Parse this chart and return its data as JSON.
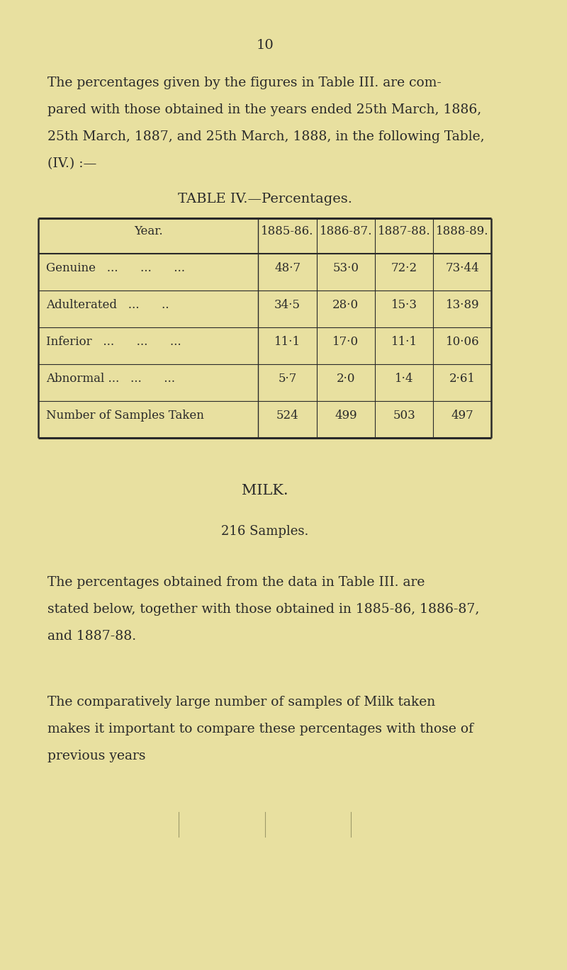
{
  "bg_color": "#e8e0a0",
  "page_number": "10",
  "intro_text_lines": [
    "The percentages given by the figures in Table III. are com-",
    "pared with those obtained in the years ended 25th March, 1886,",
    "25th March, 1887, and 25th March, 1888, in the following Table,",
    "(IV.) :—"
  ],
  "table_title": "TABLE IV.—Percentages.",
  "table_headers": [
    "Year.",
    "1885-86.",
    "1886-87.",
    "1887-88.",
    "1888-89."
  ],
  "table_rows": [
    [
      "Genuine   ...      ...      ...",
      "48·7",
      "53·0",
      "72·2",
      "73·44"
    ],
    [
      "Adulterated   ...      ..",
      "34·5",
      "28·0",
      "15·3",
      "13·89"
    ],
    [
      "Inferior   ...      ...      ...",
      "11·1",
      "17·0",
      "11·1",
      "10·06"
    ],
    [
      "Abnormal ...   ...      ...",
      "5·7",
      "2·0",
      "1·4",
      "2·61"
    ],
    [
      "Number of Samples Taken",
      "524",
      "499",
      "503",
      "497"
    ]
  ],
  "milk_title": "MILK.",
  "milk_subtitle": "216 Samples.",
  "milk_para1_lines": [
    "The percentages obtained from the data in Table III. are",
    "stated below, together with those obtained in 1885-86, 1886-87,",
    "and 1887-88."
  ],
  "milk_para2_lines": [
    "The comparatively large number of samples of Milk taken",
    "makes it important to compare these percentages with those of",
    "previous years"
  ],
  "text_color": "#2a2a2a",
  "line_color": "#2a2a2a"
}
